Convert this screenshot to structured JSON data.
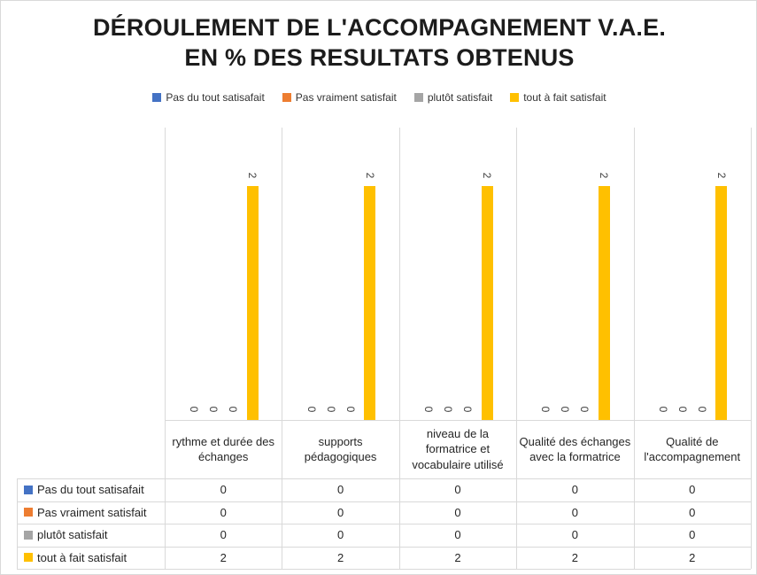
{
  "title": {
    "line1": "DÉROULEMENT DE L'ACCOMPAGNEMENT V.A.E.",
    "line2": "EN % DES RESULTATS OBTENUS"
  },
  "legend": [
    {
      "label": "Pas du tout satisafait",
      "color": "#4472C4"
    },
    {
      "label": "Pas vraiment satisfait",
      "color": "#ED7D31"
    },
    {
      "label": "plutôt satisfait",
      "color": "#A5A5A5"
    },
    {
      "label": "tout à fait satisfait",
      "color": "#FFC000"
    }
  ],
  "chart_data": {
    "type": "bar",
    "title": "DÉROULEMENT DE L'ACCOMPAGNEMENT V.A.E. EN % DES RESULTATS OBTENUS",
    "categories": [
      "rythme et durée des échanges",
      "supports pédagogiques",
      "niveau de la formatrice et vocabulaire utilisé",
      "Qualité des échanges avec la formatrice",
      "Qualité de l'accompagnement"
    ],
    "series": [
      {
        "name": "Pas du tout satisafait",
        "color": "#4472C4",
        "values": [
          0,
          0,
          0,
          0,
          0
        ]
      },
      {
        "name": "Pas vraiment satisfait",
        "color": "#ED7D31",
        "values": [
          0,
          0,
          0,
          0,
          0
        ]
      },
      {
        "name": "plutôt satisfait",
        "color": "#A5A5A5",
        "values": [
          0,
          0,
          0,
          0,
          0
        ]
      },
      {
        "name": "tout à fait satisfait",
        "color": "#FFC000",
        "values": [
          2,
          2,
          2,
          2,
          2
        ]
      }
    ],
    "ylim": [
      0,
      2.5
    ],
    "xlabel": "",
    "ylabel": "",
    "grid": "vertical-category-separators-only",
    "legend_position": "top",
    "data_labels": "rotated-90",
    "data_table_shown": true
  }
}
